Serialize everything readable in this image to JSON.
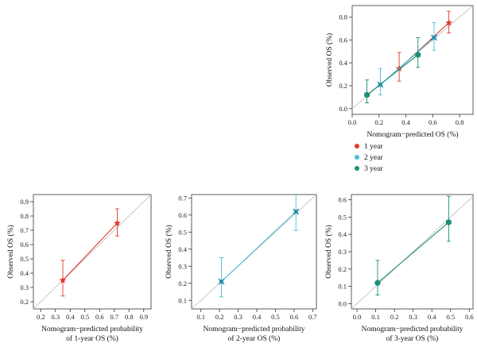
{
  "chart_data": [
    {
      "type": "scatter",
      "xlabel": [
        "Nomogram−predicted OS (%)"
      ],
      "ylabel": "Observed OS (%)",
      "xlim": [
        0,
        0.9
      ],
      "ylim": [
        -0.05,
        0.9
      ],
      "xticks": [
        "0.0",
        "0.2",
        "0.4",
        "0.6",
        "0.8"
      ],
      "yticks": [
        "0.0",
        "0.2",
        "0.4",
        "0.6",
        "0.8"
      ],
      "xtick_values": [
        0,
        0.2,
        0.4,
        0.6,
        0.8
      ],
      "ytick_values": [
        0,
        0.2,
        0.4,
        0.6,
        0.8
      ],
      "reference_line": "diagonal",
      "legend": {
        "position": "below",
        "items": [
          {
            "label": "1 year",
            "color": "#e0392b"
          },
          {
            "label": "2 year",
            "color": "#4dbbd5"
          },
          {
            "label": "3 year",
            "color": "#1a8f7a"
          }
        ]
      },
      "series": [
        {
          "name": "1 year",
          "color": "#e0392b",
          "marker": "star",
          "points": [
            {
              "x": 0.35,
              "y": 0.35,
              "lo": 0.24,
              "hi": 0.49
            },
            {
              "x": 0.72,
              "y": 0.75,
              "lo": 0.66,
              "hi": 0.85
            }
          ]
        },
        {
          "name": "2 year",
          "color": "#4dbbd5",
          "marker": "x",
          "points": [
            {
              "x": 0.21,
              "y": 0.21,
              "lo": 0.12,
              "hi": 0.35
            },
            {
              "x": 0.61,
              "y": 0.62,
              "lo": 0.51,
              "hi": 0.75
            }
          ]
        },
        {
          "name": "3 year",
          "color": "#1a8f7a",
          "marker": "hexagon",
          "points": [
            {
              "x": 0.11,
              "y": 0.12,
              "lo": 0.05,
              "hi": 0.25
            },
            {
              "x": 0.49,
              "y": 0.47,
              "lo": 0.36,
              "hi": 0.62
            }
          ]
        }
      ]
    },
    {
      "type": "scatter",
      "xlabel": [
        "Nomogram−predicted probability",
        "of 1-year OS (%)"
      ],
      "ylabel": "Observed OS (%)",
      "xlim": [
        0.15,
        0.95
      ],
      "ylim": [
        0.15,
        0.95
      ],
      "xticks": [
        "0.2",
        "0.3",
        "0.4",
        "0.5",
        "0.6",
        "0.7",
        "0.8",
        "0.9"
      ],
      "yticks": [
        "0.2",
        "0.3",
        "0.4",
        "0.5",
        "0.6",
        "0.7",
        "0.8",
        "0.9"
      ],
      "xtick_values": [
        0.2,
        0.3,
        0.4,
        0.5,
        0.6,
        0.7,
        0.8,
        0.9
      ],
      "ytick_values": [
        0.2,
        0.3,
        0.4,
        0.5,
        0.6,
        0.7,
        0.8,
        0.9
      ],
      "reference_line": "diagonal",
      "series": [
        {
          "name": "1 year",
          "color": "#e0392b",
          "marker": "star",
          "points": [
            {
              "x": 0.35,
              "y": 0.35,
              "lo": 0.24,
              "hi": 0.49
            },
            {
              "x": 0.72,
              "y": 0.75,
              "lo": 0.66,
              "hi": 0.85
            }
          ]
        }
      ]
    },
    {
      "type": "scatter",
      "xlabel": [
        "Nomogram−predicted probability",
        "of 2-year OS (%)"
      ],
      "ylabel": "Observed OS (%)",
      "xlim": [
        0.05,
        0.72
      ],
      "ylim": [
        0.05,
        0.72
      ],
      "xticks": [
        "0.1",
        "0.2",
        "0.3",
        "0.4",
        "0.5",
        "0.6",
        "0.7"
      ],
      "yticks": [
        "0.1",
        "0.2",
        "0.3",
        "0.4",
        "0.5",
        "0.6",
        "0.7"
      ],
      "xtick_values": [
        0.1,
        0.2,
        0.3,
        0.4,
        0.5,
        0.6,
        0.7
      ],
      "ytick_values": [
        0.1,
        0.2,
        0.3,
        0.4,
        0.5,
        0.6,
        0.7
      ],
      "reference_line": "diagonal",
      "series": [
        {
          "name": "2 year",
          "color": "#4dbbd5",
          "marker": "x",
          "points": [
            {
              "x": 0.21,
              "y": 0.21,
              "lo": 0.12,
              "hi": 0.35
            },
            {
              "x": 0.61,
              "y": 0.62,
              "lo": 0.51,
              "hi": 0.75
            }
          ]
        }
      ]
    },
    {
      "type": "scatter",
      "xlabel": [
        "Nomogram−predicted probability",
        "of 3-year OS (%)"
      ],
      "ylabel": "Observed OS (%)",
      "xlim": [
        -0.03,
        0.62
      ],
      "ylim": [
        -0.03,
        0.63
      ],
      "xticks": [
        "0.0",
        "0.1",
        "0.2",
        "0.3",
        "0.4",
        "0.5",
        "0.6"
      ],
      "yticks": [
        "0.0",
        "0.1",
        "0.2",
        "0.3",
        "0.4",
        "0.5",
        "0.6"
      ],
      "xtick_values": [
        0,
        0.1,
        0.2,
        0.3,
        0.4,
        0.5,
        0.6
      ],
      "ytick_values": [
        0,
        0.1,
        0.2,
        0.3,
        0.4,
        0.5,
        0.6
      ],
      "reference_line": "diagonal",
      "series": [
        {
          "name": "3 year",
          "color": "#1a8f7a",
          "marker": "hexagon",
          "points": [
            {
              "x": 0.11,
              "y": 0.12,
              "lo": 0.05,
              "hi": 0.25
            },
            {
              "x": 0.49,
              "y": 0.47,
              "lo": 0.36,
              "hi": 0.62
            }
          ]
        }
      ]
    }
  ]
}
